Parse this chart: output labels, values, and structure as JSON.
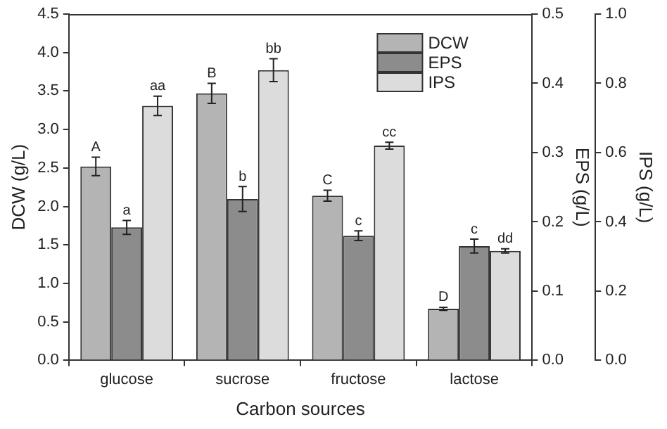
{
  "chart_data": {
    "type": "bar",
    "xlabel": "Carbon sources",
    "ylabel": "DCW (g/L)",
    "y2label": "EPS (g/L)",
    "y3label": "IPS (g/L)",
    "categories": [
      "glucose",
      "sucrose",
      "fructose",
      "lactose"
    ],
    "series": [
      {
        "name": "DCW",
        "color": "#b4b4b4",
        "values": [
          2.52,
          3.47,
          2.14,
          0.67
        ],
        "errors": [
          0.12,
          0.13,
          0.07,
          0.02
        ],
        "value_labels": [
          "A",
          "B",
          "C",
          "D"
        ]
      },
      {
        "name": "EPS",
        "color": "#8c8c8c",
        "axis": "y2",
        "values": [
          0.192,
          0.233,
          0.18,
          0.165
        ],
        "errors": [
          0.01,
          0.018,
          0.007,
          0.01
        ],
        "value_labels": [
          "a",
          "b",
          "c",
          "c"
        ]
      },
      {
        "name": "IPS",
        "color": "#dcdcdc",
        "axis": "y3",
        "values": [
          0.735,
          0.838,
          0.62,
          0.316
        ],
        "errors": [
          0.028,
          0.033,
          0.01,
          0.006
        ],
        "value_labels": [
          "aa",
          "bb",
          "cc",
          "dd"
        ]
      }
    ],
    "ylim": [
      0,
      4.5
    ],
    "yticks": [
      {
        "value": 0,
        "label": "0.0"
      },
      {
        "value": 0.5,
        "label": "0.5"
      },
      {
        "value": 1,
        "label": "1.0"
      },
      {
        "value": 1.5,
        "label": "1.5"
      },
      {
        "value": 2,
        "label": "2.0"
      },
      {
        "value": 2.5,
        "label": "2.5"
      },
      {
        "value": 3,
        "label": "3.0"
      },
      {
        "value": 3.5,
        "label": "3.5"
      },
      {
        "value": 4,
        "label": "4.0"
      },
      {
        "value": 4.5,
        "label": "4.5"
      }
    ],
    "y2lim": [
      0,
      0.5
    ],
    "y2ticks": [
      {
        "value": 0,
        "label": "0.0"
      },
      {
        "value": 0.1,
        "label": "0.1"
      },
      {
        "value": 0.2,
        "label": "0.2"
      },
      {
        "value": 0.3,
        "label": "0.3"
      },
      {
        "value": 0.4,
        "label": "0.4"
      },
      {
        "value": 0.5,
        "label": "0.5"
      }
    ],
    "y3lim": [
      0,
      1
    ],
    "y3ticks": [
      {
        "value": 0,
        "label": "0.0"
      },
      {
        "value": 0.2,
        "label": "0.2"
      },
      {
        "value": 0.4,
        "label": "0.4"
      },
      {
        "value": 0.6,
        "label": "0.6"
      },
      {
        "value": 0.8,
        "label": "0.8"
      },
      {
        "value": 1,
        "label": "1.0"
      }
    ],
    "legend": "top right"
  }
}
